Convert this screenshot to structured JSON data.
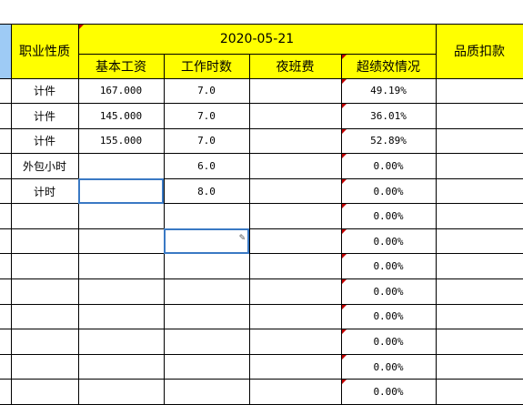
{
  "header": {
    "date": "2020-05-21",
    "job_type": "职业性质",
    "quality_deduction": "品质扣款",
    "columns": [
      "基本工资",
      "工作时数",
      "夜班费",
      "超绩效情况"
    ]
  },
  "rows": [
    {
      "type": "计件",
      "base": "167.000",
      "hours": "7.0",
      "night": "",
      "perf": "49.19%"
    },
    {
      "type": "计件",
      "base": "145.000",
      "hours": "7.0",
      "night": "",
      "perf": "36.01%"
    },
    {
      "type": "计件",
      "base": "155.000",
      "hours": "7.0",
      "night": "",
      "perf": "52.89%"
    },
    {
      "type": "外包小时",
      "base": "",
      "hours": "6.0",
      "night": "",
      "perf": "0.00%"
    },
    {
      "type": "计时",
      "base": "",
      "hours": "8.0",
      "night": "",
      "perf": "0.00%"
    },
    {
      "type": "",
      "base": "",
      "hours": "",
      "night": "",
      "perf": "0.00%"
    },
    {
      "type": "",
      "base": "",
      "hours": "",
      "night": "",
      "perf": "0.00%"
    },
    {
      "type": "",
      "base": "",
      "hours": "",
      "night": "",
      "perf": "0.00%"
    },
    {
      "type": "",
      "base": "",
      "hours": "",
      "night": "",
      "perf": "0.00%"
    },
    {
      "type": "",
      "base": "",
      "hours": "",
      "night": "",
      "perf": "0.00%"
    },
    {
      "type": "",
      "base": "",
      "hours": "",
      "night": "",
      "perf": "0.00%"
    },
    {
      "type": "",
      "base": "",
      "hours": "",
      "night": "",
      "perf": "0.00%"
    },
    {
      "type": "",
      "base": "",
      "hours": "",
      "night": "",
      "perf": "0.00%"
    }
  ],
  "icons": {
    "edit": "pencil-icon"
  }
}
